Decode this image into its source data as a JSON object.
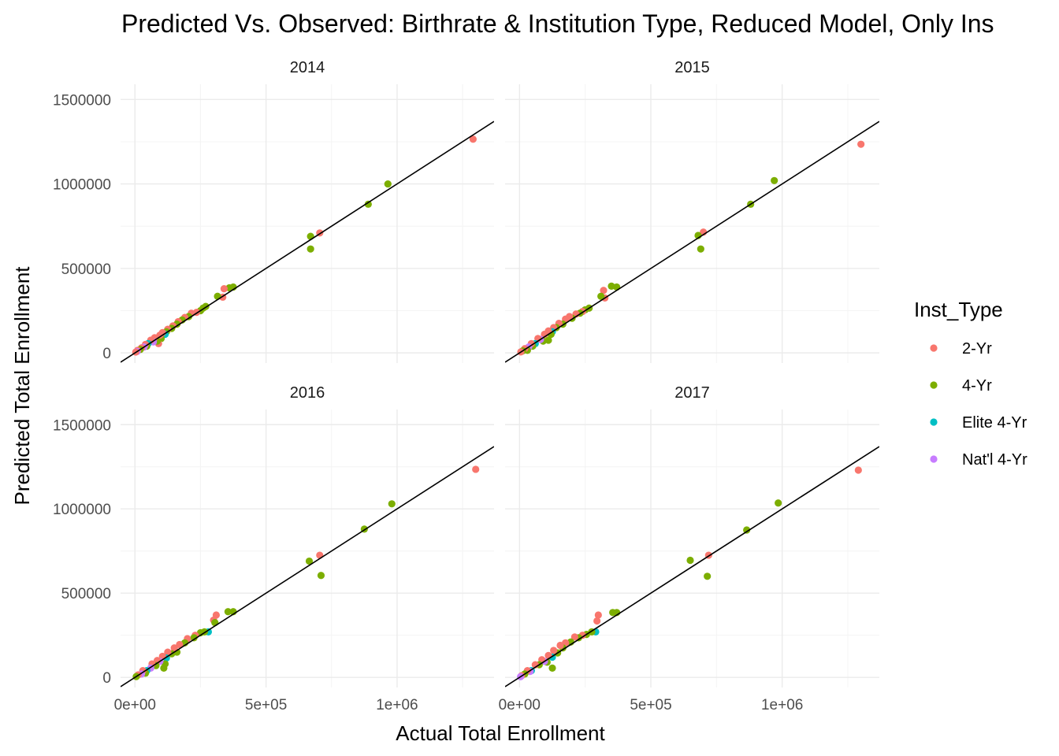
{
  "chart_data": {
    "type": "scatter",
    "title": "Predicted Vs. Observed: Birthrate & Institution Type, Reduced Model, Only Ins",
    "xlabel": "Actual Total Enrollment",
    "ylabel": "Predicted Total Enrollment",
    "x_ticks": [
      {
        "value": 0,
        "label": "0e+00"
      },
      {
        "value": 500000,
        "label": "5e+05"
      },
      {
        "value": 1000000,
        "label": "1e+06"
      }
    ],
    "y_ticks": [
      {
        "value": 0,
        "label": "0"
      },
      {
        "value": 500000,
        "label": "500000"
      },
      {
        "value": 1000000,
        "label": "1000000"
      },
      {
        "value": 1500000,
        "label": "1500000"
      }
    ],
    "xlim": [
      -55000,
      1370000
    ],
    "ylim": [
      -60000,
      1590000
    ],
    "reference_line": {
      "slope": 1,
      "intercept": 0
    },
    "grid": true,
    "legend": {
      "title": "Inst_Type",
      "position": "right",
      "entries": [
        {
          "key": "2yr",
          "label": "2-Yr",
          "color": "#F8766D"
        },
        {
          "key": "4yr",
          "label": "4-Yr",
          "color": "#7CAE00"
        },
        {
          "key": "elite",
          "label": "Elite 4-Yr",
          "color": "#00BFC4"
        },
        {
          "key": "natl",
          "label": "Nat'l 4-Yr",
          "color": "#C77CFF"
        }
      ]
    },
    "facets": [
      {
        "label": "2014",
        "points": [
          {
            "t": "2yr",
            "x": 1290000,
            "y": 1265000
          },
          {
            "t": "4yr",
            "x": 965000,
            "y": 1000000
          },
          {
            "t": "4yr",
            "x": 890000,
            "y": 880000
          },
          {
            "t": "2yr",
            "x": 705000,
            "y": 710000
          },
          {
            "t": "4yr",
            "x": 670000,
            "y": 690000
          },
          {
            "t": "4yr",
            "x": 670000,
            "y": 615000
          },
          {
            "t": "4yr",
            "x": 375000,
            "y": 390000
          },
          {
            "t": "4yr",
            "x": 360000,
            "y": 385000
          },
          {
            "t": "2yr",
            "x": 340000,
            "y": 380000
          },
          {
            "t": "2yr",
            "x": 335000,
            "y": 330000
          },
          {
            "t": "4yr",
            "x": 315000,
            "y": 335000
          },
          {
            "t": "4yr",
            "x": 270000,
            "y": 275000
          },
          {
            "t": "4yr",
            "x": 260000,
            "y": 265000
          },
          {
            "t": "4yr",
            "x": 250000,
            "y": 250000
          },
          {
            "t": "2yr",
            "x": 235000,
            "y": 240000
          },
          {
            "t": "2yr",
            "x": 215000,
            "y": 235000
          },
          {
            "t": "4yr",
            "x": 205000,
            "y": 215000
          },
          {
            "t": "2yr",
            "x": 190000,
            "y": 210000
          },
          {
            "t": "4yr",
            "x": 180000,
            "y": 195000
          },
          {
            "t": "2yr",
            "x": 165000,
            "y": 185000
          },
          {
            "t": "4yr",
            "x": 160000,
            "y": 170000
          },
          {
            "t": "2yr",
            "x": 145000,
            "y": 160000
          },
          {
            "t": "4yr",
            "x": 140000,
            "y": 145000
          },
          {
            "t": "2yr",
            "x": 125000,
            "y": 140000
          },
          {
            "t": "4yr",
            "x": 120000,
            "y": 125000
          },
          {
            "t": "elite",
            "x": 115000,
            "y": 110000
          },
          {
            "t": "2yr",
            "x": 105000,
            "y": 120000
          },
          {
            "t": "4yr",
            "x": 100000,
            "y": 85000
          },
          {
            "t": "2yr",
            "x": 95000,
            "y": 105000
          },
          {
            "t": "2yr",
            "x": 90000,
            "y": 55000
          },
          {
            "t": "4yr",
            "x": 85000,
            "y": 70000
          },
          {
            "t": "2yr",
            "x": 75000,
            "y": 90000
          },
          {
            "t": "natl",
            "x": 70000,
            "y": 65000
          },
          {
            "t": "2yr",
            "x": 60000,
            "y": 75000
          },
          {
            "t": "elite",
            "x": 50000,
            "y": 55000
          },
          {
            "t": "4yr",
            "x": 45000,
            "y": 40000
          },
          {
            "t": "2yr",
            "x": 40000,
            "y": 50000
          },
          {
            "t": "natl",
            "x": 35000,
            "y": 35000
          },
          {
            "t": "2yr",
            "x": 25000,
            "y": 30000
          },
          {
            "t": "4yr",
            "x": 20000,
            "y": 20000
          },
          {
            "t": "2yr",
            "x": 10000,
            "y": 15000
          },
          {
            "t": "natl",
            "x": 8000,
            "y": 8000
          },
          {
            "t": "2yr",
            "x": 3000,
            "y": 5000
          }
        ]
      },
      {
        "label": "2015",
        "points": [
          {
            "t": "2yr",
            "x": 1300000,
            "y": 1235000
          },
          {
            "t": "4yr",
            "x": 970000,
            "y": 1020000
          },
          {
            "t": "4yr",
            "x": 880000,
            "y": 880000
          },
          {
            "t": "2yr",
            "x": 700000,
            "y": 715000
          },
          {
            "t": "4yr",
            "x": 680000,
            "y": 695000
          },
          {
            "t": "4yr",
            "x": 690000,
            "y": 615000
          },
          {
            "t": "4yr",
            "x": 370000,
            "y": 390000
          },
          {
            "t": "4yr",
            "x": 350000,
            "y": 395000
          },
          {
            "t": "2yr",
            "x": 320000,
            "y": 370000
          },
          {
            "t": "2yr",
            "x": 325000,
            "y": 325000
          },
          {
            "t": "4yr",
            "x": 310000,
            "y": 335000
          },
          {
            "t": "4yr",
            "x": 265000,
            "y": 265000
          },
          {
            "t": "4yr",
            "x": 250000,
            "y": 255000
          },
          {
            "t": "2yr",
            "x": 240000,
            "y": 245000
          },
          {
            "t": "4yr",
            "x": 230000,
            "y": 235000
          },
          {
            "t": "2yr",
            "x": 215000,
            "y": 230000
          },
          {
            "t": "4yr",
            "x": 200000,
            "y": 205000
          },
          {
            "t": "2yr",
            "x": 190000,
            "y": 215000
          },
          {
            "t": "2yr",
            "x": 175000,
            "y": 200000
          },
          {
            "t": "4yr",
            "x": 165000,
            "y": 170000
          },
          {
            "t": "2yr",
            "x": 150000,
            "y": 175000
          },
          {
            "t": "4yr",
            "x": 140000,
            "y": 150000
          },
          {
            "t": "2yr",
            "x": 130000,
            "y": 150000
          },
          {
            "t": "elite",
            "x": 125000,
            "y": 125000
          },
          {
            "t": "4yr",
            "x": 120000,
            "y": 110000
          },
          {
            "t": "2yr",
            "x": 110000,
            "y": 130000
          },
          {
            "t": "4yr",
            "x": 110000,
            "y": 75000
          },
          {
            "t": "2yr",
            "x": 95000,
            "y": 110000
          },
          {
            "t": "4yr",
            "x": 90000,
            "y": 70000
          },
          {
            "t": "natl",
            "x": 80000,
            "y": 80000
          },
          {
            "t": "2yr",
            "x": 70000,
            "y": 85000
          },
          {
            "t": "elite",
            "x": 60000,
            "y": 55000
          },
          {
            "t": "4yr",
            "x": 50000,
            "y": 40000
          },
          {
            "t": "2yr",
            "x": 45000,
            "y": 55000
          },
          {
            "t": "natl",
            "x": 35000,
            "y": 35000
          },
          {
            "t": "4yr",
            "x": 30000,
            "y": 15000
          },
          {
            "t": "2yr",
            "x": 20000,
            "y": 25000
          },
          {
            "t": "4yr",
            "x": 12000,
            "y": 12000
          },
          {
            "t": "2yr",
            "x": 5000,
            "y": 6000
          }
        ]
      },
      {
        "label": "2016",
        "points": [
          {
            "t": "2yr",
            "x": 1300000,
            "y": 1235000
          },
          {
            "t": "4yr",
            "x": 980000,
            "y": 1030000
          },
          {
            "t": "4yr",
            "x": 875000,
            "y": 880000
          },
          {
            "t": "2yr",
            "x": 705000,
            "y": 725000
          },
          {
            "t": "4yr",
            "x": 665000,
            "y": 690000
          },
          {
            "t": "4yr",
            "x": 710000,
            "y": 605000
          },
          {
            "t": "4yr",
            "x": 375000,
            "y": 390000
          },
          {
            "t": "4yr",
            "x": 355000,
            "y": 390000
          },
          {
            "t": "2yr",
            "x": 310000,
            "y": 370000
          },
          {
            "t": "2yr",
            "x": 300000,
            "y": 340000
          },
          {
            "t": "4yr",
            "x": 305000,
            "y": 325000
          },
          {
            "t": "elite",
            "x": 280000,
            "y": 270000
          },
          {
            "t": "4yr",
            "x": 265000,
            "y": 270000
          },
          {
            "t": "4yr",
            "x": 250000,
            "y": 265000
          },
          {
            "t": "2yr",
            "x": 230000,
            "y": 250000
          },
          {
            "t": "4yr",
            "x": 225000,
            "y": 235000
          },
          {
            "t": "2yr",
            "x": 200000,
            "y": 230000
          },
          {
            "t": "4yr",
            "x": 190000,
            "y": 205000
          },
          {
            "t": "2yr",
            "x": 170000,
            "y": 195000
          },
          {
            "t": "4yr",
            "x": 160000,
            "y": 150000
          },
          {
            "t": "2yr",
            "x": 150000,
            "y": 175000
          },
          {
            "t": "4yr",
            "x": 140000,
            "y": 140000
          },
          {
            "t": "2yr",
            "x": 125000,
            "y": 150000
          },
          {
            "t": "elite",
            "x": 120000,
            "y": 115000
          },
          {
            "t": "4yr",
            "x": 115000,
            "y": 80000
          },
          {
            "t": "2yr",
            "x": 105000,
            "y": 125000
          },
          {
            "t": "4yr",
            "x": 110000,
            "y": 55000
          },
          {
            "t": "natl",
            "x": 95000,
            "y": 95000
          },
          {
            "t": "2yr",
            "x": 85000,
            "y": 100000
          },
          {
            "t": "4yr",
            "x": 80000,
            "y": 70000
          },
          {
            "t": "2yr",
            "x": 65000,
            "y": 80000
          },
          {
            "t": "natl",
            "x": 60000,
            "y": 55000
          },
          {
            "t": "elite",
            "x": 45000,
            "y": 40000
          },
          {
            "t": "4yr",
            "x": 40000,
            "y": 25000
          },
          {
            "t": "2yr",
            "x": 30000,
            "y": 40000
          },
          {
            "t": "natl",
            "x": 25000,
            "y": 20000
          },
          {
            "t": "2yr",
            "x": 12000,
            "y": 15000
          },
          {
            "t": "4yr",
            "x": 5000,
            "y": 5000
          }
        ]
      },
      {
        "label": "2017",
        "points": [
          {
            "t": "2yr",
            "x": 1290000,
            "y": 1230000
          },
          {
            "t": "4yr",
            "x": 985000,
            "y": 1035000
          },
          {
            "t": "4yr",
            "x": 865000,
            "y": 875000
          },
          {
            "t": "2yr",
            "x": 720000,
            "y": 725000
          },
          {
            "t": "4yr",
            "x": 650000,
            "y": 695000
          },
          {
            "t": "4yr",
            "x": 715000,
            "y": 600000
          },
          {
            "t": "4yr",
            "x": 370000,
            "y": 385000
          },
          {
            "t": "4yr",
            "x": 355000,
            "y": 385000
          },
          {
            "t": "2yr",
            "x": 300000,
            "y": 370000
          },
          {
            "t": "2yr",
            "x": 295000,
            "y": 335000
          },
          {
            "t": "elite",
            "x": 290000,
            "y": 270000
          },
          {
            "t": "4yr",
            "x": 275000,
            "y": 270000
          },
          {
            "t": "4yr",
            "x": 255000,
            "y": 255000
          },
          {
            "t": "2yr",
            "x": 240000,
            "y": 250000
          },
          {
            "t": "4yr",
            "x": 225000,
            "y": 235000
          },
          {
            "t": "2yr",
            "x": 210000,
            "y": 240000
          },
          {
            "t": "4yr",
            "x": 195000,
            "y": 210000
          },
          {
            "t": "2yr",
            "x": 175000,
            "y": 205000
          },
          {
            "t": "4yr",
            "x": 165000,
            "y": 175000
          },
          {
            "t": "2yr",
            "x": 155000,
            "y": 190000
          },
          {
            "t": "4yr",
            "x": 145000,
            "y": 145000
          },
          {
            "t": "2yr",
            "x": 130000,
            "y": 160000
          },
          {
            "t": "elite",
            "x": 125000,
            "y": 120000
          },
          {
            "t": "4yr",
            "x": 125000,
            "y": 55000
          },
          {
            "t": "2yr",
            "x": 110000,
            "y": 130000
          },
          {
            "t": "4yr",
            "x": 105000,
            "y": 90000
          },
          {
            "t": "natl",
            "x": 95000,
            "y": 95000
          },
          {
            "t": "2yr",
            "x": 85000,
            "y": 105000
          },
          {
            "t": "4yr",
            "x": 75000,
            "y": 75000
          },
          {
            "t": "2yr",
            "x": 60000,
            "y": 75000
          },
          {
            "t": "elite",
            "x": 45000,
            "y": 40000
          },
          {
            "t": "natl",
            "x": 40000,
            "y": 35000
          },
          {
            "t": "2yr",
            "x": 30000,
            "y": 40000
          },
          {
            "t": "4yr",
            "x": 20000,
            "y": 20000
          },
          {
            "t": "2yr",
            "x": 8000,
            "y": 10000
          },
          {
            "t": "natl",
            "x": 4000,
            "y": 4000
          }
        ]
      }
    ]
  }
}
